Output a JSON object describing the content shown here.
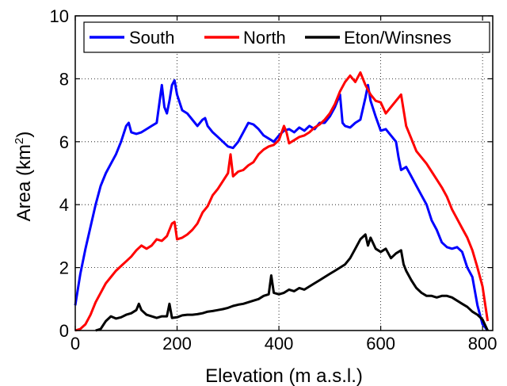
{
  "chart_data": {
    "type": "line",
    "title": "",
    "xlabel": "Elevation (m a.s.l.)",
    "ylabel_prefix": "Area (km",
    "ylabel_superscript": "2",
    "ylabel_suffix": ")",
    "xlim": [
      0,
      820
    ],
    "ylim": [
      0,
      10
    ],
    "xticks": [
      "0",
      "200",
      "400",
      "600",
      "800"
    ],
    "xtick_values": [
      0,
      200,
      400,
      600,
      800
    ],
    "yticks": [
      "0",
      "2",
      "4",
      "6",
      "8",
      "10"
    ],
    "ytick_values": [
      0,
      2,
      4,
      6,
      8,
      10
    ],
    "grid": "dotted",
    "legend_placement": "top",
    "series": [
      {
        "name": "South",
        "color": "#0000ff",
        "points": [
          [
            0,
            0.8
          ],
          [
            10,
            1.8
          ],
          [
            20,
            2.6
          ],
          [
            30,
            3.3
          ],
          [
            40,
            4.0
          ],
          [
            50,
            4.6
          ],
          [
            60,
            5.0
          ],
          [
            70,
            5.3
          ],
          [
            80,
            5.6
          ],
          [
            90,
            6.0
          ],
          [
            100,
            6.5
          ],
          [
            105,
            6.6
          ],
          [
            110,
            6.3
          ],
          [
            120,
            6.25
          ],
          [
            130,
            6.3
          ],
          [
            140,
            6.4
          ],
          [
            150,
            6.5
          ],
          [
            160,
            6.6
          ],
          [
            170,
            7.8
          ],
          [
            175,
            7.1
          ],
          [
            180,
            6.9
          ],
          [
            185,
            7.3
          ],
          [
            190,
            7.8
          ],
          [
            195,
            7.95
          ],
          [
            200,
            7.5
          ],
          [
            210,
            7.0
          ],
          [
            220,
            6.9
          ],
          [
            230,
            6.7
          ],
          [
            240,
            6.5
          ],
          [
            250,
            6.7
          ],
          [
            255,
            6.75
          ],
          [
            260,
            6.5
          ],
          [
            270,
            6.3
          ],
          [
            280,
            6.15
          ],
          [
            290,
            6.0
          ],
          [
            300,
            5.85
          ],
          [
            310,
            5.8
          ],
          [
            320,
            6.0
          ],
          [
            330,
            6.3
          ],
          [
            340,
            6.6
          ],
          [
            350,
            6.55
          ],
          [
            360,
            6.4
          ],
          [
            370,
            6.2
          ],
          [
            380,
            6.1
          ],
          [
            390,
            6.0
          ],
          [
            400,
            6.2
          ],
          [
            410,
            6.35
          ],
          [
            420,
            6.4
          ],
          [
            430,
            6.3
          ],
          [
            440,
            6.45
          ],
          [
            450,
            6.35
          ],
          [
            460,
            6.5
          ],
          [
            470,
            6.4
          ],
          [
            480,
            6.6
          ],
          [
            490,
            6.6
          ],
          [
            500,
            6.8
          ],
          [
            510,
            7.1
          ],
          [
            520,
            7.5
          ],
          [
            525,
            6.6
          ],
          [
            530,
            6.5
          ],
          [
            540,
            6.45
          ],
          [
            550,
            6.6
          ],
          [
            560,
            6.7
          ],
          [
            570,
            7.4
          ],
          [
            575,
            7.8
          ],
          [
            580,
            7.3
          ],
          [
            590,
            6.8
          ],
          [
            600,
            6.35
          ],
          [
            610,
            6.4
          ],
          [
            620,
            6.2
          ],
          [
            630,
            6.0
          ],
          [
            635,
            5.5
          ],
          [
            640,
            5.1
          ],
          [
            650,
            5.2
          ],
          [
            660,
            4.9
          ],
          [
            670,
            4.6
          ],
          [
            680,
            4.3
          ],
          [
            690,
            4.0
          ],
          [
            700,
            3.5
          ],
          [
            710,
            3.2
          ],
          [
            720,
            2.8
          ],
          [
            730,
            2.65
          ],
          [
            740,
            2.6
          ],
          [
            750,
            2.65
          ],
          [
            760,
            2.5
          ],
          [
            770,
            2.0
          ],
          [
            780,
            1.7
          ],
          [
            790,
            0.8
          ],
          [
            800,
            0.2
          ],
          [
            810,
            0.0
          ]
        ]
      },
      {
        "name": "North",
        "color": "#ff0000",
        "points": [
          [
            0,
            0.0
          ],
          [
            10,
            0.05
          ],
          [
            20,
            0.2
          ],
          [
            30,
            0.5
          ],
          [
            40,
            0.9
          ],
          [
            50,
            1.2
          ],
          [
            60,
            1.5
          ],
          [
            70,
            1.7
          ],
          [
            80,
            1.9
          ],
          [
            90,
            2.05
          ],
          [
            100,
            2.2
          ],
          [
            110,
            2.35
          ],
          [
            120,
            2.55
          ],
          [
            130,
            2.7
          ],
          [
            140,
            2.6
          ],
          [
            150,
            2.7
          ],
          [
            160,
            2.9
          ],
          [
            170,
            2.85
          ],
          [
            180,
            3.0
          ],
          [
            190,
            3.4
          ],
          [
            195,
            3.45
          ],
          [
            200,
            2.9
          ],
          [
            210,
            2.95
          ],
          [
            220,
            3.05
          ],
          [
            230,
            3.2
          ],
          [
            240,
            3.4
          ],
          [
            250,
            3.75
          ],
          [
            260,
            3.95
          ],
          [
            270,
            4.3
          ],
          [
            280,
            4.5
          ],
          [
            290,
            4.75
          ],
          [
            300,
            5.0
          ],
          [
            305,
            5.6
          ],
          [
            310,
            4.9
          ],
          [
            320,
            5.05
          ],
          [
            330,
            5.1
          ],
          [
            340,
            5.25
          ],
          [
            350,
            5.35
          ],
          [
            360,
            5.6
          ],
          [
            370,
            5.75
          ],
          [
            380,
            5.85
          ],
          [
            390,
            5.9
          ],
          [
            400,
            6.05
          ],
          [
            410,
            6.5
          ],
          [
            415,
            6.3
          ],
          [
            420,
            5.95
          ],
          [
            430,
            6.05
          ],
          [
            440,
            6.15
          ],
          [
            450,
            6.2
          ],
          [
            460,
            6.3
          ],
          [
            470,
            6.45
          ],
          [
            480,
            6.55
          ],
          [
            490,
            6.7
          ],
          [
            500,
            6.9
          ],
          [
            510,
            7.2
          ],
          [
            520,
            7.6
          ],
          [
            530,
            7.9
          ],
          [
            540,
            8.1
          ],
          [
            550,
            7.9
          ],
          [
            560,
            8.2
          ],
          [
            570,
            7.8
          ],
          [
            580,
            7.5
          ],
          [
            590,
            7.3
          ],
          [
            600,
            7.25
          ],
          [
            610,
            6.9
          ],
          [
            620,
            7.1
          ],
          [
            630,
            7.3
          ],
          [
            640,
            7.5
          ],
          [
            645,
            7.0
          ],
          [
            650,
            6.5
          ],
          [
            660,
            6.1
          ],
          [
            670,
            5.7
          ],
          [
            680,
            5.5
          ],
          [
            690,
            5.3
          ],
          [
            700,
            5.05
          ],
          [
            710,
            4.8
          ],
          [
            720,
            4.55
          ],
          [
            730,
            4.25
          ],
          [
            740,
            3.85
          ],
          [
            750,
            3.55
          ],
          [
            760,
            3.25
          ],
          [
            770,
            2.95
          ],
          [
            780,
            2.55
          ],
          [
            790,
            2.0
          ],
          [
            800,
            1.4
          ],
          [
            810,
            0.3
          ]
        ]
      },
      {
        "name": "Eton/Winsnes",
        "color": "#000000",
        "points": [
          [
            40,
            0.0
          ],
          [
            50,
            0.05
          ],
          [
            60,
            0.3
          ],
          [
            70,
            0.45
          ],
          [
            80,
            0.38
          ],
          [
            90,
            0.42
          ],
          [
            100,
            0.5
          ],
          [
            110,
            0.55
          ],
          [
            120,
            0.65
          ],
          [
            125,
            0.85
          ],
          [
            130,
            0.65
          ],
          [
            140,
            0.5
          ],
          [
            150,
            0.45
          ],
          [
            160,
            0.4
          ],
          [
            170,
            0.45
          ],
          [
            180,
            0.45
          ],
          [
            185,
            0.85
          ],
          [
            190,
            0.4
          ],
          [
            200,
            0.42
          ],
          [
            210,
            0.48
          ],
          [
            220,
            0.5
          ],
          [
            230,
            0.5
          ],
          [
            240,
            0.52
          ],
          [
            250,
            0.55
          ],
          [
            260,
            0.6
          ],
          [
            270,
            0.62
          ],
          [
            280,
            0.65
          ],
          [
            290,
            0.68
          ],
          [
            300,
            0.72
          ],
          [
            310,
            0.78
          ],
          [
            320,
            0.82
          ],
          [
            330,
            0.85
          ],
          [
            340,
            0.9
          ],
          [
            350,
            0.95
          ],
          [
            360,
            1.0
          ],
          [
            370,
            1.1
          ],
          [
            380,
            1.15
          ],
          [
            385,
            1.75
          ],
          [
            390,
            1.2
          ],
          [
            400,
            1.15
          ],
          [
            410,
            1.2
          ],
          [
            420,
            1.3
          ],
          [
            430,
            1.25
          ],
          [
            440,
            1.35
          ],
          [
            450,
            1.3
          ],
          [
            460,
            1.4
          ],
          [
            470,
            1.5
          ],
          [
            480,
            1.6
          ],
          [
            490,
            1.7
          ],
          [
            500,
            1.8
          ],
          [
            510,
            1.9
          ],
          [
            520,
            2.0
          ],
          [
            530,
            2.1
          ],
          [
            540,
            2.3
          ],
          [
            550,
            2.6
          ],
          [
            560,
            2.9
          ],
          [
            570,
            3.05
          ],
          [
            575,
            2.7
          ],
          [
            580,
            2.95
          ],
          [
            590,
            2.6
          ],
          [
            600,
            2.5
          ],
          [
            610,
            2.6
          ],
          [
            620,
            2.3
          ],
          [
            630,
            2.45
          ],
          [
            640,
            2.55
          ],
          [
            645,
            2.1
          ],
          [
            650,
            1.9
          ],
          [
            660,
            1.6
          ],
          [
            670,
            1.35
          ],
          [
            680,
            1.2
          ],
          [
            690,
            1.1
          ],
          [
            700,
            1.1
          ],
          [
            710,
            1.05
          ],
          [
            720,
            1.1
          ],
          [
            730,
            1.1
          ],
          [
            740,
            1.05
          ],
          [
            750,
            0.95
          ],
          [
            760,
            0.85
          ],
          [
            770,
            0.75
          ],
          [
            780,
            0.6
          ],
          [
            790,
            0.5
          ],
          [
            800,
            0.35
          ],
          [
            810,
            0.0
          ]
        ]
      }
    ]
  }
}
